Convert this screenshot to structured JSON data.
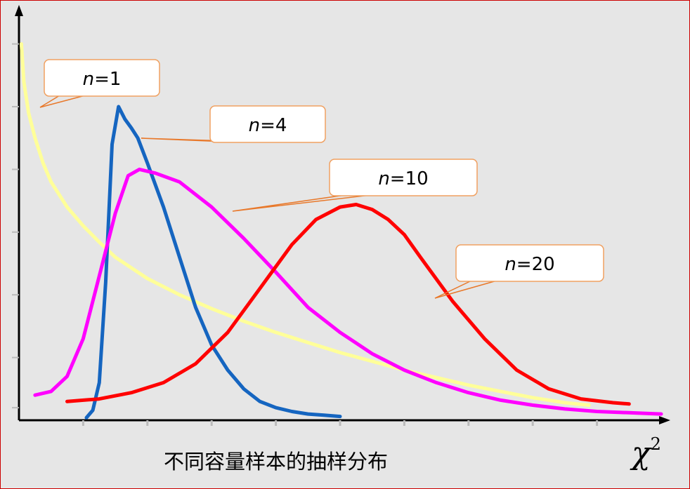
{
  "chart_data": {
    "type": "line",
    "title": "",
    "caption": "不同容量样本的抽样分布",
    "xlabel": "χ",
    "xlabel_superscript": "2",
    "ylabel": "",
    "grid": false,
    "legend": "callouts",
    "xlim": [
      0,
      40
    ],
    "ylim": [
      0,
      0.33
    ],
    "callout_prefix": "n",
    "callout_equals": "=",
    "series": [
      {
        "name": "n=1",
        "df": "1",
        "color": "#ffff99",
        "x": [
          0.15,
          0.3,
          0.6,
          1,
          1.5,
          2,
          3,
          4,
          5,
          6,
          8,
          10,
          12,
          14,
          16,
          18,
          20,
          22,
          24,
          26,
          28,
          30,
          32,
          34,
          35.5
        ],
        "y": [
          0.3,
          0.27,
          0.245,
          0.225,
          0.205,
          0.19,
          0.17,
          0.155,
          0.142,
          0.13,
          0.113,
          0.1,
          0.089,
          0.079,
          0.07,
          0.062,
          0.054,
          0.047,
          0.04,
          0.034,
          0.028,
          0.023,
          0.018,
          0.014,
          0.012
        ]
      },
      {
        "name": "n=4",
        "df": "4",
        "color": "#1565c0",
        "x": [
          4.2,
          4.6,
          5.0,
          5.4,
          5.8,
          6.2,
          6.6,
          7.0,
          7.4,
          8.0,
          9.0,
          10.0,
          11.0,
          12.0,
          13.0,
          14.0,
          15.0,
          16.0,
          17.0,
          18.0,
          19.0,
          20.0
        ],
        "y": [
          0.002,
          0.008,
          0.03,
          0.11,
          0.22,
          0.25,
          0.24,
          0.233,
          0.225,
          0.205,
          0.17,
          0.13,
          0.09,
          0.06,
          0.04,
          0.025,
          0.015,
          0.01,
          0.007,
          0.005,
          0.004,
          0.003
        ]
      },
      {
        "name": "n=10",
        "df": "10",
        "color": "#ff00ff",
        "x": [
          1,
          2,
          3,
          4,
          5,
          6,
          6.8,
          7.5,
          8.5,
          10,
          12,
          14,
          16,
          18,
          20,
          22,
          24,
          26,
          28,
          30,
          32,
          34,
          36,
          38,
          40
        ],
        "y": [
          0.02,
          0.023,
          0.035,
          0.065,
          0.115,
          0.165,
          0.195,
          0.2,
          0.197,
          0.19,
          0.17,
          0.145,
          0.118,
          0.09,
          0.07,
          0.053,
          0.04,
          0.03,
          0.022,
          0.016,
          0.012,
          0.009,
          0.007,
          0.006,
          0.005
        ]
      },
      {
        "name": "n=20",
        "df": "20",
        "color": "#ff0000",
        "x": [
          3,
          5,
          7,
          9,
          11,
          13,
          15,
          17,
          18.5,
          20,
          21,
          22,
          23,
          24,
          25,
          27,
          29,
          31,
          33,
          35,
          37,
          38
        ],
        "y": [
          0.015,
          0.017,
          0.022,
          0.03,
          0.045,
          0.07,
          0.105,
          0.14,
          0.16,
          0.17,
          0.172,
          0.168,
          0.16,
          0.148,
          0.13,
          0.095,
          0.065,
          0.04,
          0.025,
          0.017,
          0.014,
          0.013
        ]
      }
    ],
    "callout_style": {
      "fill": "#ffffff",
      "stroke": "#f0a060",
      "leader": "#e8782a"
    },
    "axis_color": "#000000"
  }
}
